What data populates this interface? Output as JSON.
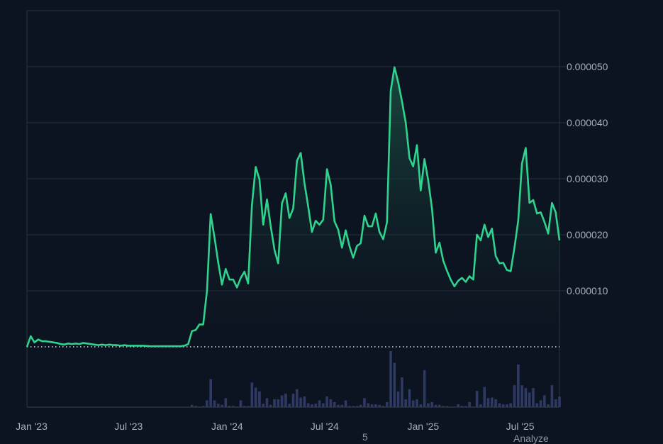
{
  "chart_data": {
    "type": "line",
    "title": "",
    "xlabel": "",
    "ylabel": "",
    "ylim": [
      0,
      6e-05
    ],
    "grid": true,
    "y_axis_position": "right",
    "yticks": [
      "0.000010",
      "0.000020",
      "0.000030",
      "0.000040",
      "0.000050"
    ],
    "ytick_values": [
      1e-05,
      2e-05,
      3e-05,
      4e-05,
      5e-05
    ],
    "xticks": [
      {
        "label": "Jan '23",
        "date": "2023-01-01"
      },
      {
        "label": "Jul '23",
        "date": "2023-07-01"
      },
      {
        "label": "Jan '24",
        "date": "2024-01-01"
      },
      {
        "label": "Jul '24",
        "date": "2024-07-01"
      },
      {
        "label": "Jan '25",
        "date": "2025-01-01"
      },
      {
        "label": "Jul '25",
        "date": "2025-07-01"
      }
    ],
    "xlim": [
      "2022-12-26",
      "2025-09-15"
    ],
    "colors": {
      "line": "#2fd38e",
      "fill_top": "#1d5a48",
      "volume": "#2e3a63",
      "grid": "#28303d",
      "background": "#0d1421",
      "baseline": "#d8dce2"
    },
    "dates": [
      "2022-12-26",
      "2023-01-02",
      "2023-01-09",
      "2023-01-16",
      "2023-01-23",
      "2023-01-30",
      "2023-02-06",
      "2023-02-13",
      "2023-02-20",
      "2023-02-27",
      "2023-03-06",
      "2023-03-13",
      "2023-03-20",
      "2023-03-27",
      "2023-04-03",
      "2023-04-10",
      "2023-04-17",
      "2023-04-24",
      "2023-05-01",
      "2023-05-08",
      "2023-05-15",
      "2023-05-22",
      "2023-05-29",
      "2023-06-05",
      "2023-06-12",
      "2023-06-19",
      "2023-06-26",
      "2023-07-03",
      "2023-07-10",
      "2023-07-17",
      "2023-07-24",
      "2023-07-31",
      "2023-08-07",
      "2023-08-14",
      "2023-08-21",
      "2023-08-28",
      "2023-09-04",
      "2023-09-11",
      "2023-09-18",
      "2023-09-25",
      "2023-10-02",
      "2023-10-09",
      "2023-10-16",
      "2023-10-23",
      "2023-10-30",
      "2023-11-06",
      "2023-11-13",
      "2023-11-20",
      "2023-11-27",
      "2023-12-04",
      "2023-12-11",
      "2023-12-18",
      "2023-12-25",
      "2024-01-01",
      "2024-01-08",
      "2024-01-15",
      "2024-01-22",
      "2024-01-29",
      "2024-02-05",
      "2024-02-12",
      "2024-02-19",
      "2024-02-26",
      "2024-03-04",
      "2024-03-11",
      "2024-03-18",
      "2024-03-25",
      "2024-04-01",
      "2024-04-08",
      "2024-04-15",
      "2024-04-22",
      "2024-04-29",
      "2024-05-06",
      "2024-05-13",
      "2024-05-20",
      "2024-05-27",
      "2024-06-03",
      "2024-06-10",
      "2024-06-17",
      "2024-06-24",
      "2024-07-01",
      "2024-07-08",
      "2024-07-15",
      "2024-07-22",
      "2024-07-29",
      "2024-08-05",
      "2024-08-12",
      "2024-08-19",
      "2024-08-26",
      "2024-09-02",
      "2024-09-09",
      "2024-09-16",
      "2024-09-23",
      "2024-09-30",
      "2024-10-07",
      "2024-10-14",
      "2024-10-21",
      "2024-10-28",
      "2024-11-04",
      "2024-11-11",
      "2024-11-18",
      "2024-11-25",
      "2024-12-02",
      "2024-12-09",
      "2024-12-16",
      "2024-12-23",
      "2024-12-30",
      "2025-01-06",
      "2025-01-13",
      "2025-01-20",
      "2025-01-27",
      "2025-02-03",
      "2025-02-10",
      "2025-02-17",
      "2025-02-24",
      "2025-03-03",
      "2025-03-10",
      "2025-03-17",
      "2025-03-24",
      "2025-03-31",
      "2025-04-07",
      "2025-04-14",
      "2025-04-21",
      "2025-04-28",
      "2025-05-05",
      "2025-05-12",
      "2025-05-19",
      "2025-05-26",
      "2025-06-02",
      "2025-06-09",
      "2025-06-16",
      "2025-06-23",
      "2025-06-30",
      "2025-07-07",
      "2025-07-14",
      "2025-07-21",
      "2025-07-28",
      "2025-08-04",
      "2025-08-11",
      "2025-08-18",
      "2025-08-25",
      "2025-09-01",
      "2025-09-08",
      "2025-09-15"
    ],
    "series": [
      {
        "values": [
          0,
          1.9e-06,
          8e-07,
          1.3e-06,
          1e-06,
          1e-06,
          9e-07,
          8e-07,
          7e-07,
          5e-07,
          4e-07,
          6e-07,
          5e-07,
          6e-07,
          5e-07,
          7e-07,
          6e-07,
          5e-07,
          4e-07,
          3e-07,
          4e-07,
          3e-07,
          4e-07,
          3e-07,
          3e-07,
          2e-07,
          3e-07,
          2e-07,
          2e-07,
          2e-07,
          2e-07,
          2e-07,
          1.5e-07,
          1e-07,
          1e-07,
          1e-07,
          1e-07,
          1e-07,
          1e-07,
          1e-07,
          1e-07,
          1e-07,
          2e-07,
          5e-07,
          2.8e-06,
          3e-06,
          4e-06,
          4e-06,
          1e-05,
          2.37e-05,
          1.96e-05,
          1.51e-05,
          1.11e-05,
          1.39e-05,
          1.2e-05,
          1.2e-05,
          1.06e-05,
          1.23e-05,
          1.34e-05,
          1.13e-05,
          2.53e-05,
          3.21e-05,
          2.99e-05,
          2.18e-05,
          2.63e-05,
          2.15e-05,
          1.73e-05,
          1.49e-05,
          2.56e-05,
          2.74e-05,
          2.3e-05,
          2.47e-05,
          3.32e-05,
          3.46e-05,
          2.92e-05,
          2.5e-05,
          2.05e-05,
          2.25e-05,
          2.18e-05,
          2.27e-05,
          3.17e-05,
          2.89e-05,
          2.24e-05,
          2.09e-05,
          1.77e-05,
          2.08e-05,
          1.8e-05,
          1.59e-05,
          1.8e-05,
          1.85e-05,
          2.34e-05,
          2.15e-05,
          2.15e-05,
          2.38e-05,
          2.05e-05,
          1.92e-05,
          2.22e-05,
          4.57e-05,
          4.99e-05,
          4.72e-05,
          4.38e-05,
          4e-05,
          3.37e-05,
          3.22e-05,
          3.6e-05,
          2.79e-05,
          3.35e-05,
          2.97e-05,
          2.47e-05,
          1.68e-05,
          1.86e-05,
          1.54e-05,
          1.36e-05,
          1.2e-05,
          1.08e-05,
          1.18e-05,
          1.23e-05,
          1.16e-05,
          1.26e-05,
          1.2e-05,
          2e-05,
          1.9e-05,
          2.18e-05,
          1.96e-05,
          2.11e-05,
          1.62e-05,
          1.49e-05,
          1.5e-05,
          1.37e-05,
          1.35e-05,
          1.77e-05,
          2.25e-05,
          3.27e-05,
          3.55e-05,
          2.57e-05,
          2.62e-05,
          2.38e-05,
          2.4e-05,
          2.23e-05,
          2.02e-05,
          2.57e-05,
          2.4e-05,
          1.9e-05
        ]
      }
    ],
    "volume_relative": [
      0,
      0,
      0,
      0,
      0,
      0,
      0,
      0,
      0,
      0,
      0,
      0,
      0,
      0,
      0,
      0,
      0,
      0,
      0,
      0,
      0,
      0,
      0,
      0,
      0,
      0,
      0,
      0,
      0,
      0,
      0,
      0,
      0,
      0,
      0,
      0,
      0,
      0,
      0,
      0,
      0,
      0,
      0,
      0,
      4,
      2,
      1,
      2,
      12,
      50,
      12,
      6,
      4,
      16,
      2,
      2,
      1,
      12,
      2,
      2,
      44,
      35,
      28,
      6,
      16,
      4,
      14,
      14,
      21,
      24,
      6,
      24,
      32,
      17,
      19,
      7,
      5,
      6,
      12,
      7,
      19,
      14,
      9,
      4,
      4,
      12,
      2,
      2,
      2,
      4,
      16,
      7,
      5,
      5,
      4,
      2,
      9,
      100,
      79,
      28,
      53,
      14,
      32,
      12,
      14,
      5,
      66,
      7,
      9,
      4,
      4,
      2,
      2,
      1,
      1,
      5,
      2,
      2,
      9,
      1,
      29,
      5,
      36,
      16,
      17,
      14,
      7,
      5,
      5,
      7,
      39,
      76,
      39,
      34,
      26,
      34,
      7,
      12,
      21,
      5,
      39,
      14,
      19
    ]
  },
  "footer": {
    "page_number": "5",
    "analyze_label": "Analyze"
  }
}
